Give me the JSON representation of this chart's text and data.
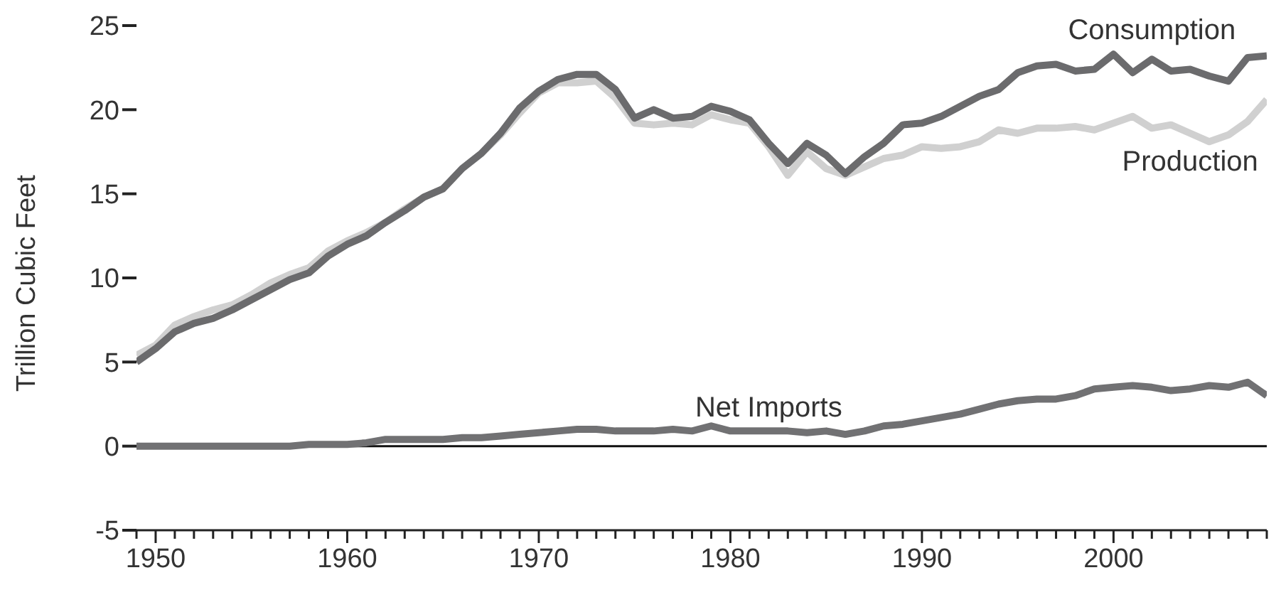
{
  "chart_data": {
    "type": "line",
    "ylabel": "Trillion Cubic Feet",
    "x": [
      1949,
      1950,
      1951,
      1952,
      1953,
      1954,
      1955,
      1956,
      1957,
      1958,
      1959,
      1960,
      1961,
      1962,
      1963,
      1964,
      1965,
      1966,
      1967,
      1968,
      1969,
      1970,
      1971,
      1972,
      1973,
      1974,
      1975,
      1976,
      1977,
      1978,
      1979,
      1980,
      1981,
      1982,
      1983,
      1984,
      1985,
      1986,
      1987,
      1988,
      1989,
      1990,
      1991,
      1992,
      1993,
      1994,
      1995,
      1996,
      1997,
      1998,
      1999,
      2000,
      2001,
      2002,
      2003,
      2004,
      2005,
      2006,
      2007,
      2008
    ],
    "series": [
      {
        "name": "Consumption",
        "color": "#6b6b6d",
        "values": [
          5.0,
          5.8,
          6.8,
          7.3,
          7.6,
          8.1,
          8.7,
          9.3,
          9.9,
          10.3,
          11.3,
          12.0,
          12.5,
          13.3,
          14.0,
          14.8,
          15.3,
          16.5,
          17.4,
          18.6,
          20.1,
          21.1,
          21.8,
          22.1,
          22.1,
          21.2,
          19.5,
          20.0,
          19.5,
          19.6,
          20.2,
          19.9,
          19.4,
          18.0,
          16.8,
          18.0,
          17.3,
          16.2,
          17.2,
          18.0,
          19.1,
          19.2,
          19.6,
          20.2,
          20.8,
          21.2,
          22.2,
          22.6,
          22.7,
          22.3,
          22.4,
          23.3,
          22.2,
          23.0,
          22.3,
          22.4,
          22.0,
          21.7,
          23.1,
          23.2
        ]
      },
      {
        "name": "Production",
        "color": "#d0d0d0",
        "values": [
          5.4,
          6.0,
          7.2,
          7.7,
          8.1,
          8.4,
          9.0,
          9.7,
          10.2,
          10.6,
          11.6,
          12.2,
          12.7,
          13.3,
          14.1,
          14.8,
          15.3,
          16.5,
          17.4,
          18.5,
          19.8,
          21.0,
          21.6,
          21.6,
          21.7,
          20.7,
          19.2,
          19.1,
          19.2,
          19.1,
          19.7,
          19.4,
          19.2,
          17.8,
          16.1,
          17.5,
          16.5,
          16.1,
          16.6,
          17.1,
          17.3,
          17.8,
          17.7,
          17.8,
          18.1,
          18.8,
          18.6,
          18.9,
          18.9,
          19.0,
          18.8,
          19.2,
          19.6,
          18.9,
          19.1,
          18.6,
          18.1,
          18.5,
          19.3,
          20.6
        ]
      },
      {
        "name": "Net Imports",
        "color": "#717173",
        "values": [
          0.0,
          0.0,
          0.0,
          0.0,
          0.0,
          0.0,
          0.0,
          0.0,
          0.0,
          0.1,
          0.1,
          0.1,
          0.2,
          0.4,
          0.4,
          0.4,
          0.4,
          0.5,
          0.5,
          0.6,
          0.7,
          0.8,
          0.9,
          1.0,
          1.0,
          0.9,
          0.9,
          0.9,
          1.0,
          0.9,
          1.2,
          0.9,
          0.9,
          0.9,
          0.9,
          0.8,
          0.9,
          0.7,
          0.9,
          1.2,
          1.3,
          1.5,
          1.7,
          1.9,
          2.2,
          2.5,
          2.7,
          2.8,
          2.8,
          3.0,
          3.4,
          3.5,
          3.6,
          3.5,
          3.3,
          3.4,
          3.6,
          3.5,
          3.8,
          3.0
        ]
      }
    ],
    "xlim": [
      1949,
      2008
    ],
    "xticks": [
      {
        "value": 1949,
        "label": null
      },
      1950,
      {
        "value": 1951,
        "label": null
      },
      {
        "value": 1952,
        "label": null
      },
      {
        "value": 1953,
        "label": null
      },
      {
        "value": 1954,
        "label": null
      },
      {
        "value": 1955,
        "label": null
      },
      {
        "value": 1956,
        "label": null
      },
      {
        "value": 1957,
        "label": null
      },
      {
        "value": 1958,
        "label": null
      },
      {
        "value": 1959,
        "label": null
      },
      1960,
      {
        "value": 1961,
        "label": null
      },
      {
        "value": 1962,
        "label": null
      },
      {
        "value": 1963,
        "label": null
      },
      {
        "value": 1964,
        "label": null
      },
      {
        "value": 1965,
        "label": null
      },
      {
        "value": 1966,
        "label": null
      },
      {
        "value": 1967,
        "label": null
      },
      {
        "value": 1968,
        "label": null
      },
      {
        "value": 1969,
        "label": null
      },
      1970,
      {
        "value": 1971,
        "label": null
      },
      {
        "value": 1972,
        "label": null
      },
      {
        "value": 1973,
        "label": null
      },
      {
        "value": 1974,
        "label": null
      },
      {
        "value": 1975,
        "label": null
      },
      {
        "value": 1976,
        "label": null
      },
      {
        "value": 1977,
        "label": null
      },
      {
        "value": 1978,
        "label": null
      },
      {
        "value": 1979,
        "label": null
      },
      1980,
      {
        "value": 1981,
        "label": null
      },
      {
        "value": 1982,
        "label": null
      },
      {
        "value": 1983,
        "label": null
      },
      {
        "value": 1984,
        "label": null
      },
      {
        "value": 1985,
        "label": null
      },
      {
        "value": 1986,
        "label": null
      },
      {
        "value": 1987,
        "label": null
      },
      {
        "value": 1988,
        "label": null
      },
      {
        "value": 1989,
        "label": null
      },
      1990,
      {
        "value": 1991,
        "label": null
      },
      {
        "value": 1992,
        "label": null
      },
      {
        "value": 1993,
        "label": null
      },
      {
        "value": 1994,
        "label": null
      },
      {
        "value": 1995,
        "label": null
      },
      {
        "value": 1996,
        "label": null
      },
      {
        "value": 1997,
        "label": null
      },
      {
        "value": 1998,
        "label": null
      },
      {
        "value": 1999,
        "label": null
      },
      2000,
      {
        "value": 2001,
        "label": null
      },
      {
        "value": 2002,
        "label": null
      },
      {
        "value": 2003,
        "label": null
      },
      {
        "value": 2004,
        "label": null
      },
      {
        "value": 2005,
        "label": null
      },
      {
        "value": 2006,
        "label": null
      },
      {
        "value": 2007,
        "label": null
      },
      {
        "value": 2008,
        "label": null
      }
    ],
    "ylim": [
      -5,
      25
    ],
    "yticks": [
      -5,
      0,
      5,
      10,
      15,
      20,
      25
    ],
    "ref_lines": [
      {
        "axis": "y",
        "value": 0,
        "color": "#111111"
      }
    ],
    "grid": false,
    "legend": false,
    "marker": "none",
    "line_style": "solid"
  }
}
